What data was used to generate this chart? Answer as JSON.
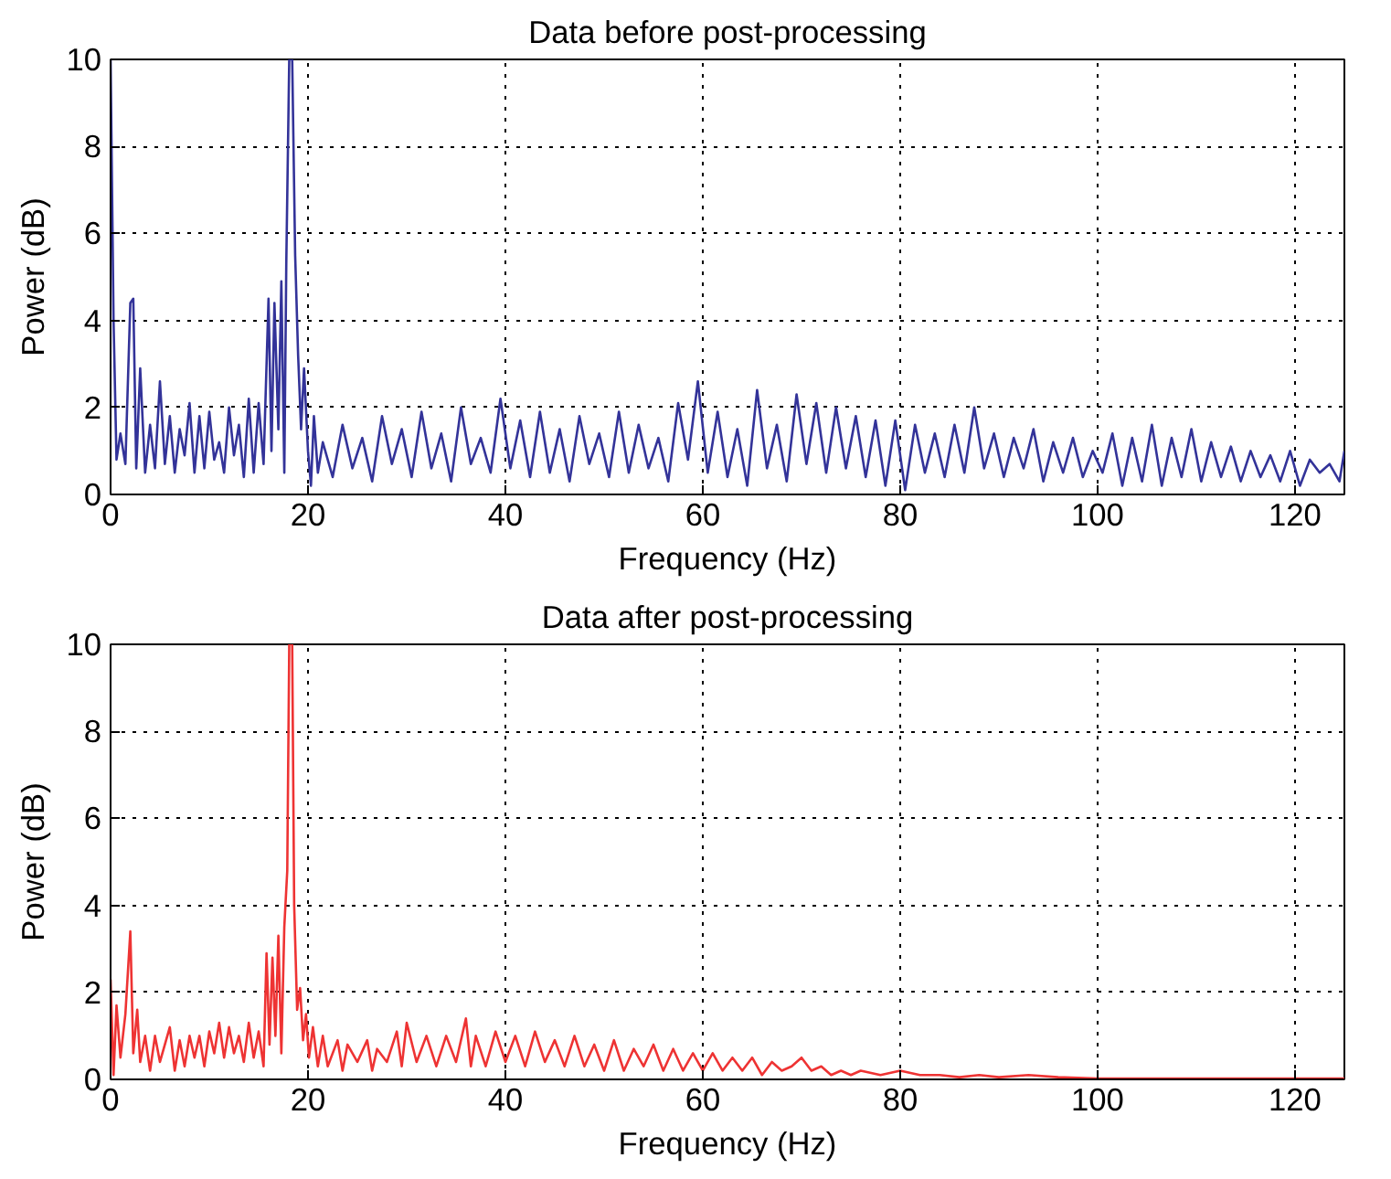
{
  "chart_data": [
    {
      "type": "line",
      "title": "Data before post-processing",
      "xlabel": "Frequency (Hz)",
      "ylabel": "Power (dB)",
      "xlim": [
        0,
        125
      ],
      "ylim": [
        0,
        10
      ],
      "xticks": [
        0,
        20,
        40,
        60,
        80,
        100,
        120
      ],
      "yticks": [
        0,
        2,
        4,
        6,
        8,
        10
      ],
      "grid": true,
      "x": [
        0,
        0.3,
        0.6,
        1,
        1.5,
        2,
        2.3,
        2.6,
        3,
        3.5,
        4,
        4.5,
        5,
        5.5,
        6,
        6.5,
        7,
        7.5,
        8,
        8.5,
        9,
        9.5,
        10,
        10.5,
        11,
        11.5,
        12,
        12.5,
        13,
        13.5,
        14,
        14.5,
        15,
        15.5,
        16,
        16.3,
        16.6,
        17,
        17.3,
        17.6,
        17.8,
        18.1,
        18.4,
        18.7,
        19,
        19.3,
        19.6,
        20,
        20.3,
        20.6,
        21,
        21.5,
        22.5,
        23.5,
        24.5,
        25.5,
        26.5,
        27.5,
        28.5,
        29.5,
        30.5,
        31.5,
        32.5,
        33.5,
        34.5,
        35.5,
        36.5,
        37.5,
        38.5,
        39.5,
        40.5,
        41.5,
        42.5,
        43.5,
        44.5,
        45.5,
        46.5,
        47.5,
        48.5,
        49.5,
        50.5,
        51.5,
        52.5,
        53.5,
        54.5,
        55.5,
        56.5,
        57.5,
        58.5,
        59.5,
        60.5,
        61.5,
        62.5,
        63.5,
        64.5,
        65.5,
        66.5,
        67.5,
        68.5,
        69.5,
        70.5,
        71.5,
        72.5,
        73.5,
        74.5,
        75.5,
        76.5,
        77.5,
        78.5,
        79.5,
        80.5,
        81.5,
        82.5,
        83.5,
        84.5,
        85.5,
        86.5,
        87.5,
        88.5,
        89.5,
        90.5,
        91.5,
        92.5,
        93.5,
        94.5,
        95.5,
        96.5,
        97.5,
        98.5,
        99.5,
        100.5,
        101.5,
        102.5,
        103.5,
        104.5,
        105.5,
        106.5,
        107.5,
        108.5,
        109.5,
        110.5,
        111.5,
        112.5,
        113.5,
        114.5,
        115.5,
        116.5,
        117.5,
        118.5,
        119.5,
        120.5,
        121.5,
        122.5,
        123.5,
        124.5,
        125
      ],
      "series": [
        {
          "color": "#333399",
          "values": [
            10,
            4,
            0.8,
            1.4,
            0.7,
            4.4,
            4.5,
            0.6,
            2.9,
            0.5,
            1.6,
            0.6,
            2.6,
            0.7,
            1.8,
            0.5,
            1.5,
            0.9,
            2.1,
            0.5,
            1.8,
            0.6,
            1.9,
            0.8,
            1.2,
            0.5,
            2.0,
            0.9,
            1.6,
            0.4,
            2.2,
            0.5,
            2.1,
            0.7,
            4.5,
            1.0,
            4.4,
            1.5,
            4.9,
            0.5,
            5.3,
            10,
            10,
            5.5,
            3.2,
            1.5,
            2.9,
            1.0,
            0.2,
            1.8,
            0.5,
            1.2,
            0.4,
            1.6,
            0.6,
            1.3,
            0.3,
            1.8,
            0.7,
            1.5,
            0.4,
            1.9,
            0.6,
            1.4,
            0.3,
            2.0,
            0.7,
            1.3,
            0.5,
            2.2,
            0.6,
            1.7,
            0.4,
            1.9,
            0.5,
            1.5,
            0.3,
            1.8,
            0.7,
            1.4,
            0.4,
            1.9,
            0.5,
            1.6,
            0.6,
            1.3,
            0.3,
            2.1,
            0.8,
            2.6,
            0.5,
            1.9,
            0.4,
            1.5,
            0.2,
            2.4,
            0.6,
            1.6,
            0.3,
            2.3,
            0.7,
            2.1,
            0.5,
            2.0,
            0.6,
            1.8,
            0.4,
            1.7,
            0.2,
            1.7,
            0.1,
            1.6,
            0.5,
            1.4,
            0.4,
            1.6,
            0.5,
            2.0,
            0.6,
            1.4,
            0.4,
            1.3,
            0.6,
            1.5,
            0.3,
            1.2,
            0.5,
            1.3,
            0.4,
            1.0,
            0.5,
            1.4,
            0.2,
            1.3,
            0.3,
            1.6,
            0.2,
            1.3,
            0.4,
            1.5,
            0.3,
            1.2,
            0.4,
            1.1,
            0.3,
            1.0,
            0.4,
            0.9,
            0.3,
            1.0,
            0.2,
            0.8,
            0.5,
            0.7,
            0.3,
            1.0
          ]
        }
      ]
    },
    {
      "type": "line",
      "title": "Data after post-processing",
      "xlabel": "Frequency (Hz)",
      "ylabel": "Power (dB)",
      "xlim": [
        0,
        125
      ],
      "ylim": [
        0,
        10
      ],
      "xticks": [
        0,
        20,
        40,
        60,
        80,
        100,
        120
      ],
      "yticks": [
        0,
        2,
        4,
        6,
        8,
        10
      ],
      "grid": true,
      "x": [
        0,
        0.3,
        0.6,
        1,
        1.5,
        2,
        2.3,
        2.7,
        3,
        3.5,
        4,
        4.5,
        5,
        6,
        6.5,
        7,
        7.5,
        8,
        8.5,
        9,
        9.5,
        10,
        10.5,
        11,
        11.5,
        12,
        12.5,
        13,
        13.5,
        14,
        14.5,
        15,
        15.5,
        15.8,
        16.1,
        16.4,
        16.7,
        17,
        17.3,
        17.6,
        17.9,
        18.1,
        18.4,
        18.6,
        18.9,
        19.2,
        19.5,
        19.8,
        20.1,
        20.5,
        21,
        21.5,
        22,
        23,
        23.5,
        24,
        25,
        26,
        26.5,
        27,
        28,
        29,
        29.5,
        30,
        31,
        32,
        33,
        34,
        35,
        36,
        36.5,
        37,
        38,
        39,
        40,
        41,
        42,
        43,
        44,
        45,
        46,
        47,
        48,
        49,
        50,
        51,
        52,
        53,
        54,
        55,
        56,
        57,
        58,
        59,
        60,
        61,
        62,
        63,
        64,
        65,
        66,
        67,
        68,
        69,
        70,
        71,
        72,
        73,
        74,
        75,
        76,
        78,
        80,
        82,
        84,
        86,
        88,
        90,
        93,
        96,
        100,
        110,
        125
      ],
      "series": [
        {
          "color": "#ee3333",
          "values": [
            2.3,
            0.1,
            1.7,
            0.5,
            1.5,
            3.4,
            0.6,
            1.6,
            0.4,
            1.0,
            0.2,
            1.0,
            0.4,
            1.2,
            0.2,
            0.9,
            0.3,
            1.0,
            0.5,
            1.0,
            0.3,
            1.1,
            0.6,
            1.3,
            0.5,
            1.2,
            0.6,
            1.0,
            0.4,
            1.3,
            0.5,
            1.1,
            0.3,
            2.9,
            0.8,
            2.8,
            1.0,
            3.3,
            0.6,
            3.5,
            4.8,
            10,
            10,
            4.0,
            1.6,
            2.1,
            0.9,
            1.5,
            0.5,
            1.2,
            0.3,
            1.0,
            0.3,
            0.9,
            0.2,
            0.8,
            0.4,
            0.9,
            0.2,
            0.7,
            0.4,
            1.1,
            0.3,
            1.3,
            0.4,
            1.0,
            0.3,
            1.0,
            0.4,
            1.4,
            0.3,
            1.0,
            0.3,
            1.1,
            0.4,
            1.0,
            0.3,
            1.1,
            0.4,
            0.9,
            0.3,
            1.0,
            0.3,
            0.8,
            0.2,
            0.9,
            0.2,
            0.7,
            0.3,
            0.8,
            0.2,
            0.7,
            0.2,
            0.6,
            0.2,
            0.6,
            0.2,
            0.5,
            0.2,
            0.5,
            0.1,
            0.4,
            0.2,
            0.3,
            0.5,
            0.2,
            0.3,
            0.1,
            0.2,
            0.1,
            0.2,
            0.1,
            0.2,
            0.1,
            0.1,
            0.05,
            0.1,
            0.05,
            0.1,
            0.05,
            0.02,
            0.02,
            0.02
          ]
        }
      ]
    }
  ]
}
